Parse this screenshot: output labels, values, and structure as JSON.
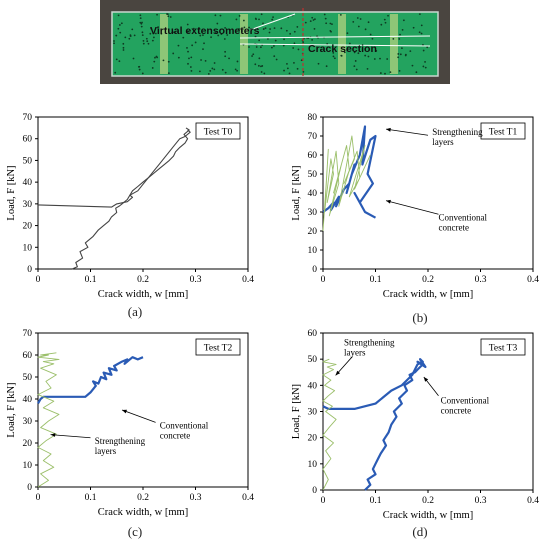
{
  "photo": {
    "label_extensometers": "Virtual extensometers",
    "label_crack": "Crack section"
  },
  "captions": [
    "(a)",
    "(b)",
    "(c)",
    "(d)"
  ],
  "colors": {
    "conventional": "#2a5bb5",
    "strengthening": "#9bbf6a",
    "single": "#444444",
    "photo_bg": "#23a35f"
  },
  "chart_data": [
    {
      "type": "line",
      "title": "Test T0",
      "xlabel": "Crack width, w [mm]",
      "ylabel": "Load, F [kN]",
      "xlim": [
        0,
        0.4
      ],
      "ylim": [
        0,
        70
      ],
      "xticks": [
        "0",
        "0.1",
        "0.2",
        "0.3",
        "0.4"
      ],
      "yticks": [
        "0",
        "10",
        "20",
        "30",
        "40",
        "50",
        "60",
        "70"
      ],
      "grid": false,
      "series": [
        {
          "style": "single",
          "x": [
            0.065,
            0.075,
            0.072,
            0.085,
            0.08,
            0.095,
            0.09,
            0.105,
            0.115,
            0.125,
            0.135,
            0.14,
            0.15,
            0.148,
            0.155,
            0.16,
            0.17,
            0.175,
            0.18,
            0.19,
            0.2,
            0.21,
            0.22,
            0.23,
            0.24,
            0.25,
            0.258,
            0.262,
            0.27,
            0.28,
            0.285,
            0.278,
            0.288,
            0.282
          ],
          "y": [
            0,
            1,
            3,
            5,
            8,
            10,
            12,
            15,
            18,
            20,
            22,
            24,
            26,
            28,
            29,
            30,
            32,
            34,
            36,
            38,
            40,
            42,
            44,
            46,
            48,
            50,
            52,
            54,
            56,
            58,
            60,
            62,
            64,
            65
          ]
        },
        {
          "style": "single",
          "x": [
            0,
            0.14,
            0.15,
            0.17,
            0.18,
            0.175,
            0.19,
            0.2,
            0.21,
            0.22,
            0.23,
            0.24,
            0.25,
            0.26,
            0.27,
            0.28,
            0.29,
            0.285
          ],
          "y": [
            29.5,
            28.5,
            30,
            31,
            33,
            34,
            36,
            39,
            42,
            45,
            48,
            51,
            54,
            57,
            60,
            61,
            63,
            64
          ]
        }
      ]
    },
    {
      "type": "line",
      "title": "Test T1",
      "xlabel": "Crack width, w [mm]",
      "ylabel": "Load, F [kN]",
      "xlim": [
        0,
        0.4
      ],
      "ylim": [
        0,
        80
      ],
      "xticks": [
        "0",
        "0.1",
        "0.2",
        "0.3",
        "0.4"
      ],
      "yticks": [
        "0",
        "10",
        "20",
        "30",
        "40",
        "50",
        "60",
        "70",
        "80"
      ],
      "grid": false,
      "annotations": [
        "Strengthening layers",
        "Conventional concrete"
      ],
      "series": [
        {
          "name": "Conventional concrete",
          "style": "conventional",
          "x": [
            0.0,
            0.01,
            0.02,
            0.015,
            0.03,
            0.025,
            0.04,
            0.05,
            0.045,
            0.06,
            0.055,
            0.07,
            0.08,
            0.075,
            0.09,
            0.1,
            0.085,
            0.095,
            0.07,
            0.06,
            0.08,
            0.1
          ],
          "y": [
            30,
            32,
            35,
            31,
            38,
            33,
            42,
            45,
            40,
            55,
            50,
            60,
            75,
            55,
            68,
            70,
            50,
            45,
            35,
            40,
            30,
            27
          ]
        },
        {
          "name": "Strengthening layers",
          "style": "strengthening",
          "x": [
            0.0,
            0.005,
            0.01,
            0.003,
            0.015,
            0.02,
            0.008,
            0.025,
            0.03,
            0.012,
            0.035,
            0.04,
            0.02,
            0.045,
            0.05,
            0.03,
            0.055,
            0.06,
            0.04,
            0.065,
            0.07,
            0.05,
            0.08,
            0.06,
            0.09
          ],
          "y": [
            20,
            40,
            63,
            30,
            58,
            50,
            35,
            62,
            45,
            28,
            55,
            60,
            40,
            65,
            52,
            33,
            70,
            58,
            45,
            62,
            48,
            38,
            65,
            42,
            60
          ]
        }
      ]
    },
    {
      "type": "line",
      "title": "Test T2",
      "xlabel": "Crack width, w [mm]",
      "ylabel": "Load, F [kN]",
      "xlim": [
        0,
        0.4
      ],
      "ylim": [
        0,
        70
      ],
      "xticks": [
        "0",
        "0.1",
        "0.2",
        "0.3",
        "0.4"
      ],
      "yticks": [
        "0",
        "10",
        "20",
        "30",
        "40",
        "50",
        "60",
        "70"
      ],
      "grid": false,
      "annotations": [
        "Conventional concrete",
        "Strengthening layers"
      ],
      "series": [
        {
          "name": "Conventional concrete",
          "style": "conventional",
          "x": [
            0.0,
            0.005,
            0.01,
            0.05,
            0.09,
            0.1,
            0.11,
            0.105,
            0.115,
            0.12,
            0.13,
            0.125,
            0.14,
            0.135,
            0.15,
            0.145,
            0.16,
            0.17,
            0.165,
            0.18,
            0.19,
            0.2
          ],
          "y": [
            38,
            40,
            41,
            41,
            41,
            43,
            46,
            48,
            47,
            50,
            49,
            52,
            51,
            54,
            53,
            55,
            57,
            58,
            56,
            59,
            58,
            59
          ]
        },
        {
          "name": "Strengthening layers",
          "style": "strengthening",
          "x": [
            0.0,
            0.02,
            0.005,
            0.03,
            0.01,
            0.025,
            0.0,
            0.015,
            0.035,
            0.005,
            0.02,
            0.04,
            0.01,
            0.03,
            0.0,
            0.025,
            0.015,
            0.035,
            0.005,
            0.03,
            0.01,
            0.04,
            0.0,
            0.02,
            0.005,
            0.035
          ],
          "y": [
            0,
            3,
            6,
            9,
            12,
            15,
            18,
            21,
            24,
            27,
            30,
            33,
            36,
            39,
            42,
            45,
            48,
            51,
            54,
            56,
            57,
            58,
            59,
            60,
            60,
            61
          ]
        }
      ]
    },
    {
      "type": "line",
      "title": "Test T3",
      "xlabel": "Crack width, w [mm]",
      "ylabel": "Load, F [kN]",
      "xlim": [
        0,
        0.4
      ],
      "ylim": [
        0,
        60
      ],
      "xticks": [
        "0",
        "0.1",
        "0.2",
        "0.3",
        "0.4"
      ],
      "yticks": [
        "0",
        "10",
        "20",
        "30",
        "40",
        "50",
        "60"
      ],
      "grid": false,
      "annotations": [
        "Strengthening layers",
        "Conventional concrete"
      ],
      "series": [
        {
          "name": "Conventional concrete",
          "style": "conventional",
          "x": [
            0.08,
            0.09,
            0.085,
            0.1,
            0.095,
            0.1,
            0.105,
            0.11,
            0.12,
            0.115,
            0.125,
            0.13,
            0.14,
            0.135,
            0.15,
            0.145,
            0.16,
            0.155,
            0.17,
            0.165,
            0.175,
            0.18,
            0.19,
            0.18,
            0.195,
            0.185
          ],
          "y": [
            0,
            2,
            4,
            6,
            8,
            10,
            12,
            14,
            17,
            19,
            22,
            25,
            28,
            30,
            33,
            35,
            38,
            40,
            42,
            44,
            45,
            46,
            48,
            49,
            47,
            50
          ]
        },
        {
          "name": "Conventional concrete",
          "style": "conventional",
          "x": [
            0.0,
            0.01,
            0.06,
            0.1,
            0.13,
            0.15,
            0.16,
            0.17,
            0.175,
            0.18,
            0.19,
            0.185,
            0.195
          ],
          "y": [
            32,
            31,
            31,
            33,
            38,
            40,
            42,
            44,
            46,
            48,
            49,
            50,
            47
          ]
        },
        {
          "name": "Strengthening layers",
          "style": "strengthening",
          "x": [
            0.0,
            0.01,
            0.0,
            0.015,
            0.005,
            0.02,
            0.0,
            0.012,
            0.025,
            0.005,
            0.018,
            0.0,
            0.01,
            0.022,
            0.003,
            0.015,
            0.0,
            0.02,
            0.008,
            0.025,
            0.0,
            0.012
          ],
          "y": [
            0,
            4,
            8,
            12,
            15,
            18,
            21,
            24,
            27,
            30,
            32,
            34,
            36,
            38,
            40,
            42,
            44,
            46,
            47,
            48,
            49,
            50
          ]
        }
      ]
    }
  ]
}
